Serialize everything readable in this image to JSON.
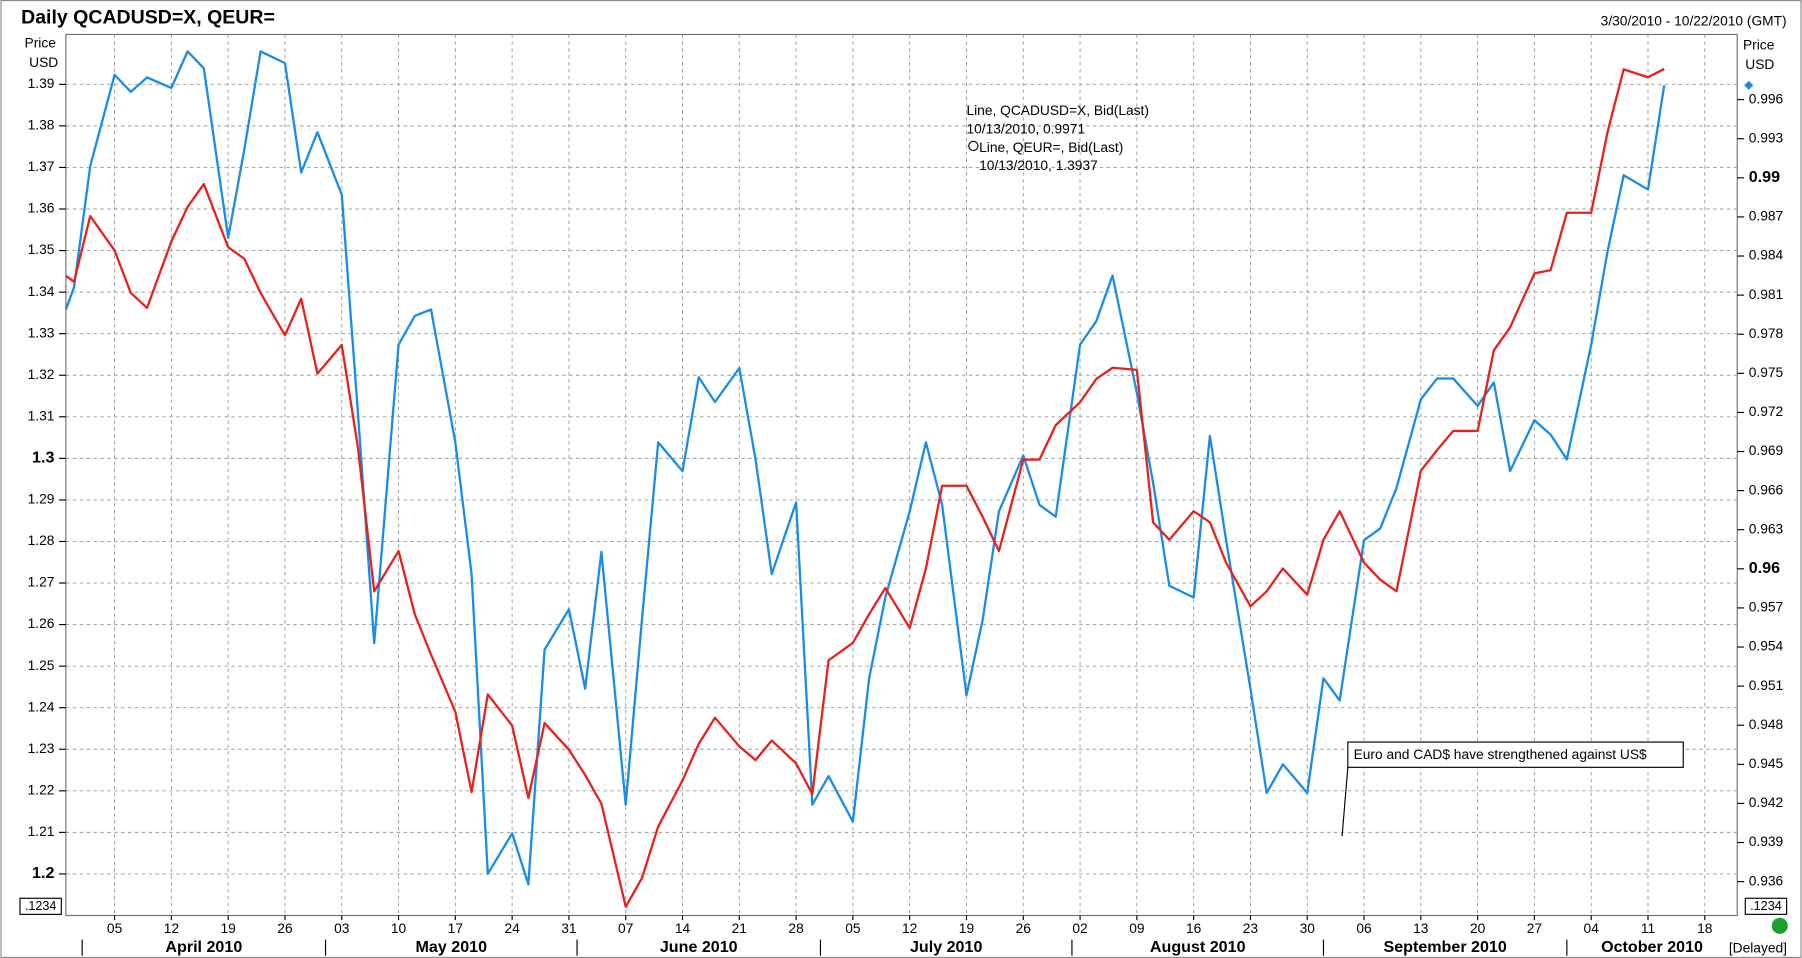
{
  "chart_data": {
    "type": "line",
    "title": "Daily QCADUSD=X, QEUR=",
    "date_range": "3/30/2010 - 10/22/2010 (GMT)",
    "ylabel": "Price",
    "yunit": "USD",
    "y2label": "Price",
    "y2unit": "USD",
    "scale_box": ".1234",
    "status": "[Delayed]",
    "annotation": "Euro and CAD$ have strengthened against US$",
    "grid": true,
    "xlim": [
      "2010-03-30",
      "2010-10-22"
    ],
    "ylim": [
      1.19,
      1.402
    ],
    "y2lim": [
      0.9334,
      1.001
    ],
    "yticks": [
      1.2,
      1.21,
      1.22,
      1.23,
      1.24,
      1.25,
      1.26,
      1.27,
      1.28,
      1.29,
      1.3,
      1.31,
      1.32,
      1.33,
      1.34,
      1.35,
      1.36,
      1.37,
      1.38,
      1.39
    ],
    "y2ticks": [
      0.936,
      0.939,
      0.942,
      0.945,
      0.948,
      0.951,
      0.954,
      0.957,
      0.96,
      0.963,
      0.966,
      0.969,
      0.972,
      0.975,
      0.978,
      0.981,
      0.984,
      0.987,
      0.99,
      0.993,
      0.996
    ],
    "xticks": [
      {
        "value": "2010-04-05",
        "label": "05"
      },
      {
        "value": "2010-04-12",
        "label": "12"
      },
      {
        "value": "2010-04-19",
        "label": "19"
      },
      {
        "value": "2010-04-26",
        "label": "26"
      },
      {
        "value": "2010-05-03",
        "label": "03"
      },
      {
        "value": "2010-05-10",
        "label": "10"
      },
      {
        "value": "2010-05-17",
        "label": "17"
      },
      {
        "value": "2010-05-24",
        "label": "24"
      },
      {
        "value": "2010-05-31",
        "label": "31"
      },
      {
        "value": "2010-06-07",
        "label": "07"
      },
      {
        "value": "2010-06-14",
        "label": "14"
      },
      {
        "value": "2010-06-21",
        "label": "21"
      },
      {
        "value": "2010-06-28",
        "label": "28"
      },
      {
        "value": "2010-07-05",
        "label": "05"
      },
      {
        "value": "2010-07-12",
        "label": "12"
      },
      {
        "value": "2010-07-19",
        "label": "19"
      },
      {
        "value": "2010-07-26",
        "label": "26"
      },
      {
        "value": "2010-08-02",
        "label": "02"
      },
      {
        "value": "2010-08-09",
        "label": "09"
      },
      {
        "value": "2010-08-16",
        "label": "16"
      },
      {
        "value": "2010-08-23",
        "label": "23"
      },
      {
        "value": "2010-08-30",
        "label": "30"
      },
      {
        "value": "2010-09-06",
        "label": "06"
      },
      {
        "value": "2010-09-13",
        "label": "13"
      },
      {
        "value": "2010-09-20",
        "label": "20"
      },
      {
        "value": "2010-09-27",
        "label": "27"
      },
      {
        "value": "2010-10-04",
        "label": "04"
      },
      {
        "value": "2010-10-11",
        "label": "11"
      },
      {
        "value": "2010-10-18",
        "label": "18"
      }
    ],
    "months": [
      {
        "value": "2010-04-01",
        "label": "April 2010"
      },
      {
        "value": "2010-05-01",
        "label": "May 2010"
      },
      {
        "value": "2010-06-01",
        "label": "June 2010"
      },
      {
        "value": "2010-07-01",
        "label": "July 2010"
      },
      {
        "value": "2010-08-01",
        "label": "August 2010"
      },
      {
        "value": "2010-09-01",
        "label": "September 2010"
      },
      {
        "value": "2010-10-01",
        "label": "October 2010"
      }
    ],
    "x": [
      "2010-03-30",
      "2010-03-31",
      "2010-04-02",
      "2010-04-05",
      "2010-04-07",
      "2010-04-09",
      "2010-04-12",
      "2010-04-14",
      "2010-04-16",
      "2010-04-19",
      "2010-04-21",
      "2010-04-23",
      "2010-04-26",
      "2010-04-28",
      "2010-04-30",
      "2010-05-03",
      "2010-05-05",
      "2010-05-07",
      "2010-05-10",
      "2010-05-12",
      "2010-05-14",
      "2010-05-17",
      "2010-05-19",
      "2010-05-21",
      "2010-05-24",
      "2010-05-26",
      "2010-05-28",
      "2010-05-31",
      "2010-06-02",
      "2010-06-04",
      "2010-06-07",
      "2010-06-09",
      "2010-06-11",
      "2010-06-14",
      "2010-06-16",
      "2010-06-18",
      "2010-06-21",
      "2010-06-23",
      "2010-06-25",
      "2010-06-28",
      "2010-06-30",
      "2010-07-02",
      "2010-07-05",
      "2010-07-07",
      "2010-07-09",
      "2010-07-12",
      "2010-07-14",
      "2010-07-16",
      "2010-07-19",
      "2010-07-21",
      "2010-07-23",
      "2010-07-26",
      "2010-07-28",
      "2010-07-30",
      "2010-08-02",
      "2010-08-04",
      "2010-08-06",
      "2010-08-09",
      "2010-08-11",
      "2010-08-13",
      "2010-08-16",
      "2010-08-18",
      "2010-08-20",
      "2010-08-23",
      "2010-08-25",
      "2010-08-27",
      "2010-08-30",
      "2010-09-01",
      "2010-09-03",
      "2010-09-06",
      "2010-09-08",
      "2010-09-10",
      "2010-09-13",
      "2010-09-15",
      "2010-09-17",
      "2010-09-20",
      "2010-09-22",
      "2010-09-24",
      "2010-09-27",
      "2010-09-29",
      "2010-10-01",
      "2010-10-04",
      "2010-10-06",
      "2010-10-08",
      "2010-10-11",
      "2010-10-13"
    ],
    "series": [
      {
        "name": "Line, QCADUSD=X, Bid(Last)",
        "point_label": "10/13/2010, 0.9971",
        "color": "#1a8ce8",
        "axis": "y2",
        "values": [
          0.9799,
          0.9816,
          0.9909,
          0.9979,
          0.9966,
          0.9977,
          0.9969,
          0.9997,
          0.9984,
          0.9854,
          0.9922,
          0.9997,
          0.9988,
          0.9904,
          0.9935,
          0.9887,
          0.9719,
          0.9543,
          0.9772,
          0.9794,
          0.9799,
          0.9697,
          0.9596,
          0.9366,
          0.9397,
          0.9358,
          0.9538,
          0.9569,
          0.9508,
          0.9613,
          0.9419,
          0.9561,
          0.9697,
          0.9675,
          0.9747,
          0.9728,
          0.9754,
          0.9684,
          0.9596,
          0.9651,
          0.9419,
          0.9441,
          0.9406,
          0.9516,
          0.9578,
          0.9644,
          0.9697,
          0.9649,
          0.9503,
          0.9561,
          0.9644,
          0.9687,
          0.9649,
          0.964,
          0.9772,
          0.979,
          0.9825,
          0.9735,
          0.9666,
          0.9587,
          0.9578,
          0.9702,
          0.9622,
          0.9508,
          0.9428,
          0.945,
          0.9428,
          0.9516,
          0.9499,
          0.9622,
          0.9631,
          0.9662,
          0.973,
          0.9746,
          0.9746,
          0.9725,
          0.9743,
          0.9675,
          0.9714,
          0.9703,
          0.9684,
          0.9772,
          0.9843,
          0.9902,
          0.9891,
          0.9971
        ]
      },
      {
        "name": "Line, QEUR=, Bid(Last)",
        "point_label": "10/13/2010, 1.3937",
        "color": "#e8211c",
        "values": [
          1.3439,
          1.3425,
          1.3583,
          1.35,
          1.3398,
          1.3362,
          1.3522,
          1.3605,
          1.366,
          1.3508,
          1.348,
          1.3398,
          1.3296,
          1.3384,
          1.3204,
          1.3273,
          1.3025,
          1.268,
          1.2777,
          1.2625,
          1.2528,
          1.239,
          1.2197,
          1.2432,
          1.2357,
          1.2183,
          1.2363,
          1.2299,
          1.2238,
          1.2169,
          1.1921,
          1.199,
          1.2114,
          1.2225,
          1.2313,
          1.2376,
          1.2307,
          1.2274,
          1.2321,
          1.2266,
          1.2192,
          1.2514,
          1.2556,
          1.2625,
          1.2688,
          1.2592,
          1.2735,
          1.2934,
          1.2934,
          1.2859,
          1.2777,
          1.2997,
          1.2997,
          1.308,
          1.3135,
          1.3191,
          1.3218,
          1.3213,
          1.2846,
          1.2804,
          1.2873,
          1.2846,
          1.2749,
          1.2644,
          1.268,
          1.2735,
          1.2672,
          1.2804,
          1.2873,
          1.2749,
          1.2708,
          1.268,
          1.297,
          1.302,
          1.3066,
          1.3066,
          1.326,
          1.3315,
          1.3445,
          1.3453,
          1.3591,
          1.3591,
          1.3784,
          1.3936,
          1.3917,
          1.3937
        ]
      }
    ]
  }
}
